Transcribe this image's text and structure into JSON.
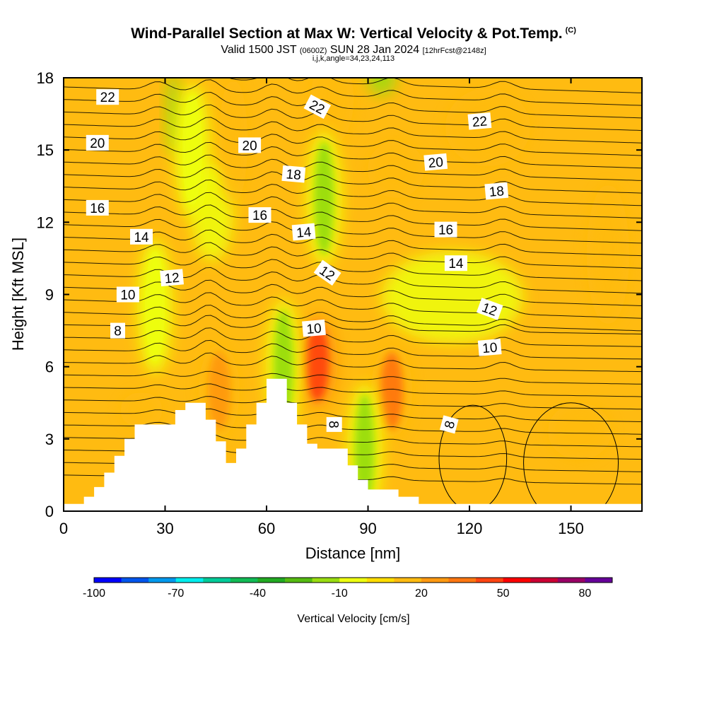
{
  "title": "Wind-Parallel Section at Max W: Vertical Velocity & Pot.Temp.",
  "copyright_mark": "(C)",
  "subtitle": {
    "valid": "Valid 1500 JST",
    "zulu": "(0600Z)",
    "date": "SUN 28 Jan 2024",
    "forecast": "[12hrFcst@2148z]"
  },
  "subtitle2": "i,j,k,angle=34,23,24,113",
  "chart_data": {
    "type": "heatmap",
    "title": "Wind-Parallel Section at Max W: Vertical Velocity & Pot.Temp.",
    "xlabel": "Distance [nm]",
    "ylabel": "Height [Kft MSL]",
    "xlim": [
      0,
      171
    ],
    "ylim": [
      0,
      18
    ],
    "xticks": [
      "0",
      "30",
      "60",
      "90",
      "120",
      "150"
    ],
    "xtick_values": [
      0,
      30,
      60,
      90,
      120,
      150
    ],
    "yticks": [
      "0",
      "3",
      "6",
      "9",
      "12",
      "15",
      "18"
    ],
    "ytick_values": [
      0,
      3,
      6,
      9,
      12,
      15,
      18
    ],
    "background_value_cm_s": 10,
    "shaded_field": "Vertical Velocity [cm/s]",
    "contour_field": "Potential temperature",
    "colorbar": {
      "label": "Vertical Velocity [cm/s]",
      "tick_labels": [
        "-100",
        "-70",
        "-40",
        "-10",
        "20",
        "50",
        "80"
      ],
      "tick_values": [
        -100,
        -70,
        -40,
        -10,
        20,
        50,
        80
      ],
      "range": [
        -100,
        90
      ],
      "colors": [
        "#0000ff",
        "#0055ee",
        "#0099ee",
        "#00eeee",
        "#00cc99",
        "#11bb55",
        "#22aa22",
        "#55bb11",
        "#99dd11",
        "#eeff11",
        "#ffdd00",
        "#ffbb11",
        "#ff9911",
        "#ff7711",
        "#ff4411",
        "#ff0000",
        "#cc0033",
        "#990066",
        "#660099"
      ]
    },
    "features": [
      {
        "kind": "updraft",
        "x": 75,
        "y": 6.2,
        "value": 40
      },
      {
        "kind": "updraft",
        "x": 97,
        "y": 5,
        "value": 30
      },
      {
        "kind": "updraft",
        "x": 46,
        "y": 5,
        "value": 25
      },
      {
        "kind": "downdraft",
        "x": 77,
        "y": 13,
        "value": -15
      },
      {
        "kind": "downdraft",
        "x": 65,
        "y": 6,
        "value": -20
      },
      {
        "kind": "downdraft",
        "x": 89,
        "y": 2.5,
        "value": -20
      },
      {
        "kind": "downdraft",
        "x": 27,
        "y": 8.5,
        "value": -10
      },
      {
        "kind": "downdraft",
        "x": 38,
        "y": 15,
        "value": -10
      }
    ],
    "terrain": {
      "x": [
        0,
        6,
        9,
        12,
        15,
        18,
        21,
        24,
        27,
        30,
        33,
        36,
        39,
        42,
        45,
        48,
        51,
        54,
        57,
        60,
        63,
        66,
        69,
        72,
        75,
        78,
        81,
        84,
        87,
        90,
        93,
        96,
        99,
        102,
        105,
        108,
        120,
        130,
        140,
        150,
        160,
        171
      ],
      "height": [
        0.3,
        0.6,
        1.0,
        1.6,
        2.3,
        3.0,
        3.6,
        3.6,
        3.6,
        3.6,
        4.2,
        4.5,
        4.5,
        3.8,
        2.9,
        2.0,
        2.6,
        3.6,
        4.5,
        5.5,
        5.5,
        4.5,
        3.6,
        2.8,
        2.6,
        2.6,
        2.6,
        1.9,
        1.3,
        0.9,
        0.9,
        0.9,
        0.6,
        0.6,
        0.3,
        0.3,
        0.3,
        0.3,
        0.3,
        0.3,
        0.3,
        0.3
      ]
    },
    "contour_labels": [
      {
        "text": "22",
        "x": 13,
        "y": 17.2,
        "angle": 0
      },
      {
        "text": "22",
        "x": 75,
        "y": 16.8,
        "angle": 28
      },
      {
        "text": "22",
        "x": 123,
        "y": 16.2,
        "angle": -5
      },
      {
        "text": "20",
        "x": 10,
        "y": 15.3,
        "angle": 0
      },
      {
        "text": "20",
        "x": 55,
        "y": 15.2,
        "angle": 0
      },
      {
        "text": "20",
        "x": 110,
        "y": 14.5,
        "angle": -5
      },
      {
        "text": "18",
        "x": 68,
        "y": 14.0,
        "angle": 5
      },
      {
        "text": "18",
        "x": 128,
        "y": 13.3,
        "angle": -5
      },
      {
        "text": "16",
        "x": 10,
        "y": 12.6,
        "angle": 0
      },
      {
        "text": "16",
        "x": 58,
        "y": 12.3,
        "angle": 0
      },
      {
        "text": "16",
        "x": 113,
        "y": 11.7,
        "angle": 0
      },
      {
        "text": "14",
        "x": 23,
        "y": 11.4,
        "angle": 0
      },
      {
        "text": "14",
        "x": 71,
        "y": 11.6,
        "angle": -5
      },
      {
        "text": "14",
        "x": 116,
        "y": 10.3,
        "angle": 0
      },
      {
        "text": "12",
        "x": 32,
        "y": 9.7,
        "angle": -5
      },
      {
        "text": "12",
        "x": 78,
        "y": 9.9,
        "angle": 35
      },
      {
        "text": "12",
        "x": 126,
        "y": 8.4,
        "angle": 20
      },
      {
        "text": "10",
        "x": 19,
        "y": 9.0,
        "angle": 0
      },
      {
        "text": "10",
        "x": 74,
        "y": 7.6,
        "angle": -5
      },
      {
        "text": "10",
        "x": 126,
        "y": 6.8,
        "angle": -5
      },
      {
        "text": "8",
        "x": 16,
        "y": 7.5,
        "angle": 0
      },
      {
        "text": "8",
        "x": 80,
        "y": 3.6,
        "angle": 90
      },
      {
        "text": "8",
        "x": 114,
        "y": 3.6,
        "angle": -75
      }
    ],
    "grid": false
  }
}
